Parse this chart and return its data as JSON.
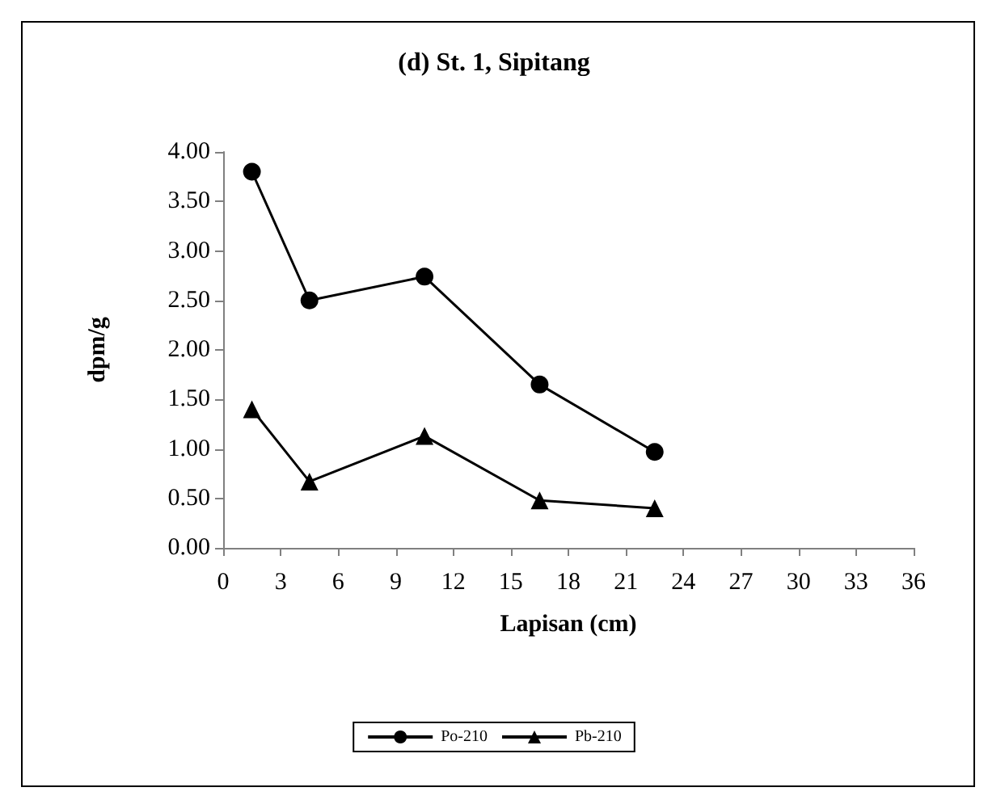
{
  "chart_data": {
    "type": "line",
    "title": "(d) St. 1, Sipitang",
    "xlabel": "Lapisan (cm)",
    "ylabel": "dpm/g",
    "x": [
      1.5,
      4.5,
      10.5,
      16.5,
      22.5
    ],
    "series": [
      {
        "name": "Po-210",
        "color": "#000000",
        "marker": "circle",
        "values": [
          3.8,
          2.5,
          2.74,
          1.65,
          0.97
        ]
      },
      {
        "name": "Pb-210",
        "color": "#000000",
        "marker": "triangle",
        "values": [
          1.4,
          0.67,
          1.13,
          0.48,
          0.4
        ]
      }
    ],
    "xlim": [
      0,
      36
    ],
    "xticks": [
      0,
      3,
      6,
      9,
      12,
      15,
      18,
      21,
      24,
      27,
      30,
      33,
      36
    ],
    "ylim": [
      0,
      4
    ],
    "yticks": [
      {
        "value": 0,
        "label": "0.00"
      },
      {
        "value": 0.5,
        "label": "0.50"
      },
      {
        "value": 1,
        "label": "1.00"
      },
      {
        "value": 1.5,
        "label": "1.50"
      },
      {
        "value": 2,
        "label": "2.00"
      },
      {
        "value": 2.5,
        "label": "2.50"
      },
      {
        "value": 3,
        "label": "3.00"
      },
      {
        "value": 3.5,
        "label": "3.50"
      },
      {
        "value": 4,
        "label": "4.00"
      }
    ],
    "grid": false,
    "legend": "bottom",
    "line_style": "solid"
  }
}
